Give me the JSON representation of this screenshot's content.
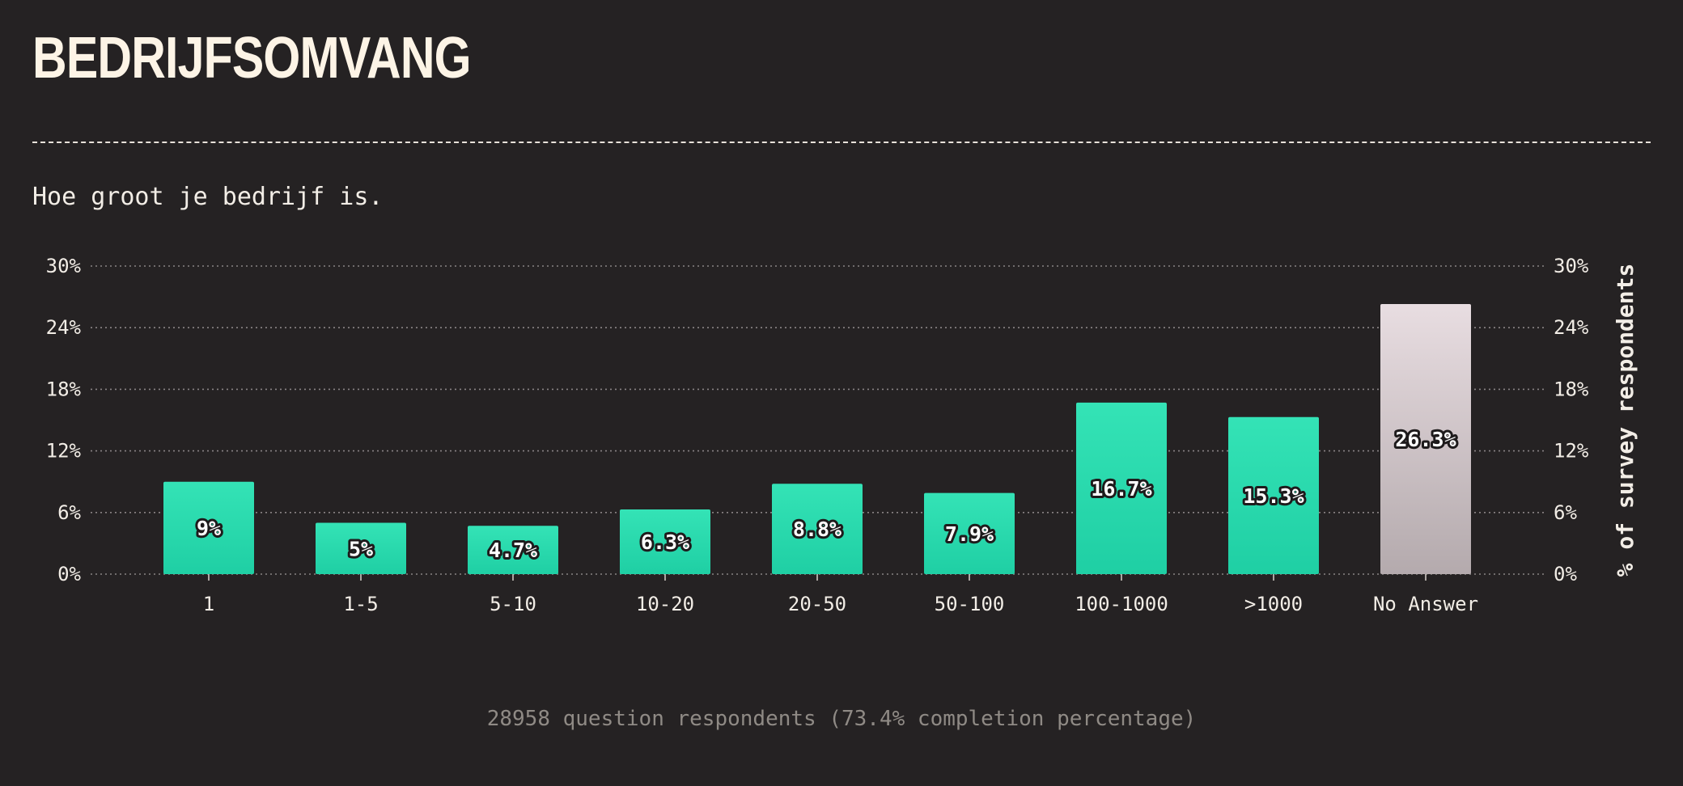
{
  "page": {
    "title": "BEDRIJFSOMVANG",
    "subtitle": "Hoe groot je bedrijf is.",
    "footer": "28958 question respondents (73.4% completion percentage)"
  },
  "colors": {
    "background": "#252223",
    "bar_top": "#34e3b6",
    "bar_bottom": "#1fcfa4",
    "no_answer_top": "#e8dde1",
    "no_answer_bottom": "#b4aaad",
    "grid": "#8a8485",
    "text": "#f2ede6"
  },
  "chart_data": {
    "type": "bar",
    "categories": [
      "1",
      "1-5",
      "5-10",
      "10-20",
      "20-50",
      "50-100",
      "100-1000",
      ">1000",
      "No Answer"
    ],
    "values": [
      9,
      5,
      4.7,
      6.3,
      8.8,
      7.9,
      16.7,
      15.3,
      26.3
    ],
    "value_labels": [
      "9%",
      "5%",
      "4.7%",
      "6.3%",
      "8.8%",
      "7.9%",
      "16.7%",
      "15.3%",
      "26.3%"
    ],
    "highlight_category": "No Answer",
    "yticks": [
      0,
      6,
      12,
      18,
      24,
      30
    ],
    "ytick_labels": [
      "0%",
      "6%",
      "12%",
      "18%",
      "24%",
      "30%"
    ],
    "ylim": [
      0,
      30
    ],
    "ylabel": "% of survey respondents",
    "grid": true,
    "grid_style": "dotted"
  }
}
